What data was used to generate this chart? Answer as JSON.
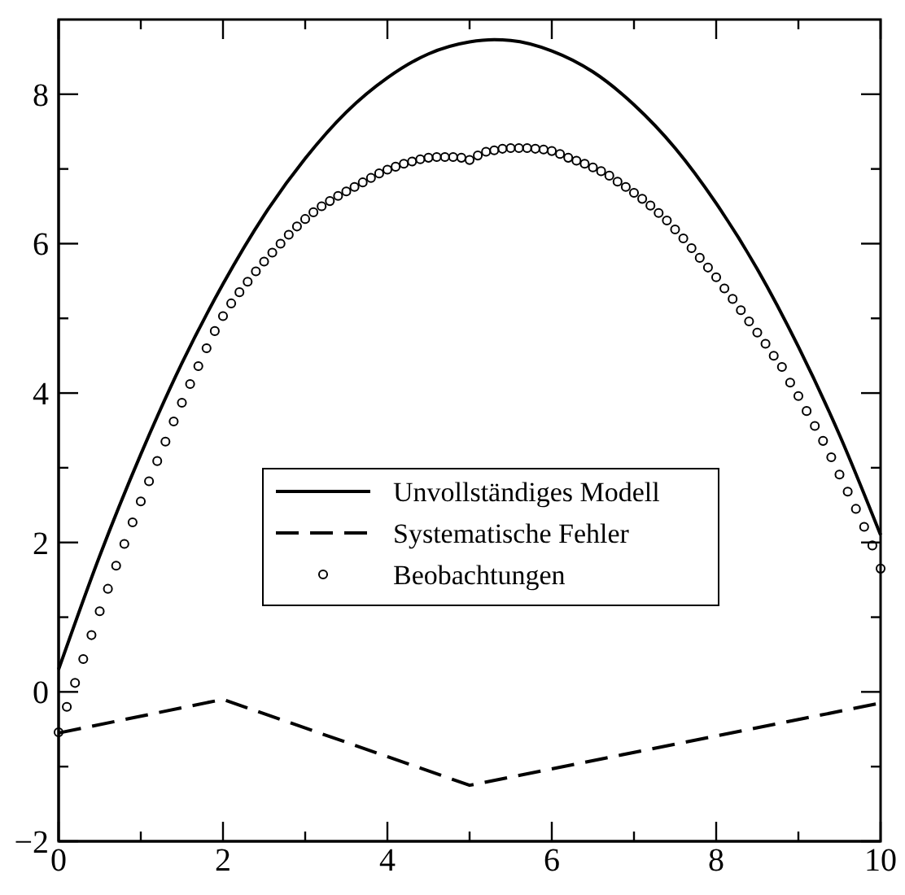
{
  "chart_data": {
    "type": "line",
    "xlim": [
      0,
      10
    ],
    "ylim": [
      -2,
      9
    ],
    "xticks": [
      0,
      {
        "value": 1,
        "label": null
      },
      2,
      {
        "value": 3,
        "label": null
      },
      4,
      {
        "value": 5,
        "label": null
      },
      6,
      {
        "value": 7,
        "label": null
      },
      8,
      {
        "value": 9,
        "label": null
      },
      10
    ],
    "yticks": [
      -2,
      {
        "value": -1,
        "label": null
      },
      0,
      {
        "value": 1,
        "label": null
      },
      2,
      {
        "value": 3,
        "label": null
      },
      4,
      {
        "value": 5,
        "label": null
      },
      6,
      {
        "value": 7,
        "label": null
      },
      8
    ],
    "legend": "center",
    "grid": false,
    "series": [
      {
        "name": "Unvollständiges Modell",
        "type": "line",
        "line_style": "solid",
        "color": "#000000",
        "x": [
          0,
          0.5,
          1,
          1.5,
          2,
          2.5,
          3,
          3.5,
          4,
          4.5,
          5,
          5.3,
          5.5,
          6,
          6.5,
          7,
          7.5,
          8,
          8.5,
          9,
          9.5,
          10
        ],
        "values": [
          0.3,
          1.82,
          3.18,
          4.4,
          5.46,
          6.38,
          7.14,
          7.76,
          8.22,
          8.54,
          8.7,
          8.73,
          8.72,
          8.58,
          8.3,
          7.86,
          7.28,
          6.54,
          5.66,
          4.62,
          3.44,
          2.1
        ]
      },
      {
        "name": "Systematische Fehler",
        "type": "line",
        "line_style": "dashed",
        "color": "#000000",
        "x": [
          0,
          2,
          5,
          10
        ],
        "values": [
          -0.55,
          -0.1,
          -1.25,
          -0.15
        ]
      },
      {
        "name": "Beobachtungen",
        "type": "scatter",
        "marker": "circle",
        "color": "#000000",
        "x": [
          0,
          0.1,
          0.2,
          0.3,
          0.4,
          0.5,
          0.6,
          0.7,
          0.8,
          0.9,
          1,
          1.1,
          1.2,
          1.3,
          1.4,
          1.5,
          1.6,
          1.7,
          1.8,
          1.9,
          2,
          2.1,
          2.2,
          2.3,
          2.4,
          2.5,
          2.6,
          2.7,
          2.8,
          2.9,
          3,
          3.1,
          3.2,
          3.3,
          3.4,
          3.5,
          3.6,
          3.7,
          3.8,
          3.9,
          4,
          4.1,
          4.2,
          4.3,
          4.4,
          4.5,
          4.6,
          4.7,
          4.8,
          4.9,
          5,
          5.1,
          5.2,
          5.3,
          5.4,
          5.5,
          5.6,
          5.7,
          5.8,
          5.9,
          6,
          6.1,
          6.2,
          6.3,
          6.4,
          6.5,
          6.6,
          6.7,
          6.8,
          6.9,
          7,
          7.1,
          7.2,
          7.3,
          7.4,
          7.5,
          7.6,
          7.7,
          7.8,
          7.9,
          8,
          8.1,
          8.2,
          8.3,
          8.4,
          8.5,
          8.6,
          8.7,
          8.8,
          8.9,
          9,
          9.1,
          9.2,
          9.3,
          9.4,
          9.5,
          9.6,
          9.7,
          9.8,
          9.9,
          10
        ],
        "values": [
          -0.54,
          -0.2,
          0.12,
          0.44,
          0.76,
          1.08,
          1.38,
          1.69,
          1.98,
          2.27,
          2.55,
          2.82,
          3.09,
          3.35,
          3.62,
          3.87,
          4.12,
          4.36,
          4.6,
          4.83,
          5.03,
          5.2,
          5.35,
          5.49,
          5.63,
          5.76,
          5.88,
          6,
          6.12,
          6.23,
          6.33,
          6.42,
          6.5,
          6.57,
          6.64,
          6.7,
          6.76,
          6.82,
          6.88,
          6.94,
          6.99,
          7.03,
          7.07,
          7.1,
          7.13,
          7.15,
          7.16,
          7.16,
          7.16,
          7.15,
          7.12,
          7.18,
          7.23,
          7.25,
          7.27,
          7.28,
          7.28,
          7.28,
          7.27,
          7.26,
          7.24,
          7.2,
          7.15,
          7.11,
          7.07,
          7.02,
          6.97,
          6.91,
          6.83,
          6.76,
          6.68,
          6.6,
          6.51,
          6.41,
          6.31,
          6.19,
          6.07,
          5.94,
          5.81,
          5.68,
          5.55,
          5.4,
          5.26,
          5.11,
          4.96,
          4.81,
          4.66,
          4.5,
          4.35,
          4.14,
          3.96,
          3.76,
          3.56,
          3.36,
          3.14,
          2.91,
          2.68,
          2.45,
          2.21,
          1.96,
          1.65
        ]
      }
    ]
  }
}
